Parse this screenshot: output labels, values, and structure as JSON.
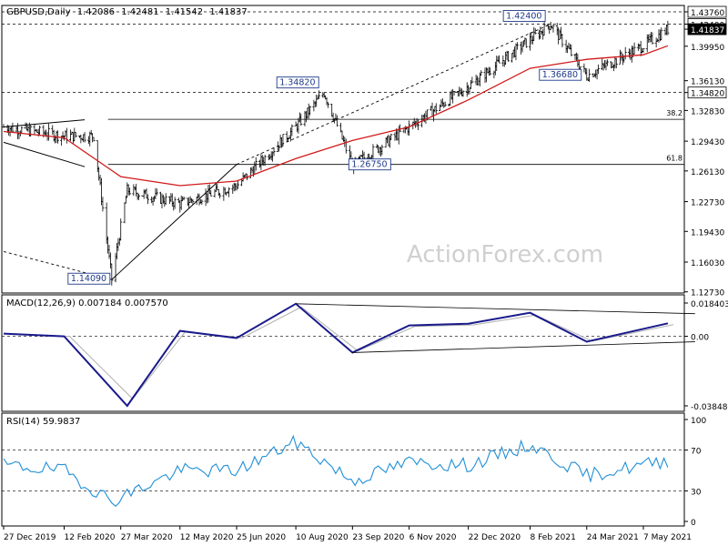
{
  "chart_data": [
    {
      "type": "candlestick",
      "title": "GBPUSD,Daily",
      "ohlc_readout": [
        "1.42086",
        "1.42481",
        "1.41542",
        "1.41837"
      ],
      "watermark": "ActionForex.com",
      "yticks": [
        "1.43760",
        "1.42400",
        "1.41837",
        "1.39950",
        "1.36130",
        "1.34820",
        "1.32830",
        "1.29430",
        "1.26130",
        "1.22730",
        "1.19430",
        "1.16030",
        "1.12730"
      ],
      "xticks": [
        "27 Dec 2019",
        "12 Feb 2020",
        "27 Mar 2020",
        "12 May 2020",
        "25 Jun 2020",
        "10 Aug 2020",
        "23 Sep 2020",
        "6 Nov 2020",
        "22 Dec 2020",
        "8 Feb 2021",
        "24 Mar 2021",
        "7 May 2021"
      ],
      "price_path": [
        {
          "x": "27 Dec 2019",
          "y": 1.31
        },
        {
          "x": "20 Jan 2020",
          "y": 1.305
        },
        {
          "x": "12 Feb 2020",
          "y": 1.3
        },
        {
          "x": "6 Mar 2020",
          "y": 1.3
        },
        {
          "x": "20 Mar 2020",
          "y": 1.1409
        },
        {
          "x": "1 Apr 2020",
          "y": 1.24
        },
        {
          "x": "12 May 2020",
          "y": 1.225
        },
        {
          "x": "25 Jun 2020",
          "y": 1.245
        },
        {
          "x": "10 Aug 2020",
          "y": 1.31
        },
        {
          "x": "1 Sep 2020",
          "y": 1.3482
        },
        {
          "x": "23 Sep 2020",
          "y": 1.2675
        },
        {
          "x": "6 Nov 2020",
          "y": 1.31
        },
        {
          "x": "22 Dec 2020",
          "y": 1.355
        },
        {
          "x": "24 Feb 2021",
          "y": 1.424
        },
        {
          "x": "24 Mar 2021",
          "y": 1.3668
        },
        {
          "x": "7 May 2021",
          "y": 1.4
        },
        {
          "x": "26 May 2021",
          "y": 1.41837
        }
      ],
      "moving_average": [
        {
          "x": "27 Dec 2019",
          "y": 1.305
        },
        {
          "x": "12 Feb 2020",
          "y": 1.298
        },
        {
          "x": "27 Mar 2020",
          "y": 1.255
        },
        {
          "x": "12 May 2020",
          "y": 1.245
        },
        {
          "x": "25 Jun 2020",
          "y": 1.25
        },
        {
          "x": "10 Aug 2020",
          "y": 1.275
        },
        {
          "x": "23 Sep 2020",
          "y": 1.295
        },
        {
          "x": "6 Nov 2020",
          "y": 1.31
        },
        {
          "x": "22 Dec 2020",
          "y": 1.34
        },
        {
          "x": "8 Feb 2021",
          "y": 1.375
        },
        {
          "x": "24 Mar 2021",
          "y": 1.385
        },
        {
          "x": "7 May 2021",
          "y": 1.39
        },
        {
          "x": "26 May 2021",
          "y": 1.4
        }
      ],
      "price_labels": [
        {
          "text": "1.42400",
          "x": "24 Feb 2021",
          "y": 1.424
        },
        {
          "text": "1.34820",
          "x": "1 Sep 2020",
          "y": 1.3482
        },
        {
          "text": "1.36680",
          "x": "24 Mar 2021",
          "y": 1.3668
        },
        {
          "text": "1.26750",
          "x": "23 Sep 2020",
          "y": 1.2675
        },
        {
          "text": "1.14090",
          "x": "20 Mar 2020",
          "y": 1.1409
        }
      ],
      "fib_levels": [
        {
          "label": "38.2",
          "y": 1.3185
        },
        {
          "label": "61.8",
          "y": 1.2685
        }
      ],
      "horizontal_levels": [
        1.4376,
        1.424,
        1.3482
      ]
    },
    {
      "type": "line",
      "title": "MACD(12,26,9) 0.007184 0.007570",
      "yticks": [
        "0.018403",
        "0.00",
        "-0.038483"
      ],
      "macd_path": [
        {
          "x": "27 Dec 2019",
          "y": 0.0015
        },
        {
          "x": "12 Feb 2020",
          "y": 0.0
        },
        {
          "x": "1 Apr 2020",
          "y": -0.0385
        },
        {
          "x": "12 May 2020",
          "y": 0.003
        },
        {
          "x": "25 Jun 2020",
          "y": -0.001
        },
        {
          "x": "10 Aug 2020",
          "y": 0.018
        },
        {
          "x": "23 Sep 2020",
          "y": -0.009
        },
        {
          "x": "6 Nov 2020",
          "y": 0.006
        },
        {
          "x": "22 Dec 2020",
          "y": 0.007
        },
        {
          "x": "8 Feb 2021",
          "y": 0.013
        },
        {
          "x": "24 Mar 2021",
          "y": -0.003
        },
        {
          "x": "26 May 2021",
          "y": 0.007184
        }
      ]
    },
    {
      "type": "line",
      "title": "RSI(14) 59.9837",
      "yticks": [
        "100",
        "70",
        "30",
        "0"
      ],
      "rsi_path": [
        {
          "x": "27 Dec 2019",
          "y": 55
        },
        {
          "x": "12 Feb 2020",
          "y": 50
        },
        {
          "x": "20 Mar 2020",
          "y": 20
        },
        {
          "x": "12 May 2020",
          "y": 50
        },
        {
          "x": "25 Jun 2020",
          "y": 50
        },
        {
          "x": "10 Aug 2020",
          "y": 78
        },
        {
          "x": "23 Sep 2020",
          "y": 40
        },
        {
          "x": "6 Nov 2020",
          "y": 58
        },
        {
          "x": "22 Dec 2020",
          "y": 55
        },
        {
          "x": "8 Feb 2021",
          "y": 75
        },
        {
          "x": "24 Mar 2021",
          "y": 45
        },
        {
          "x": "26 May 2021",
          "y": 59.9837
        }
      ]
    }
  ]
}
